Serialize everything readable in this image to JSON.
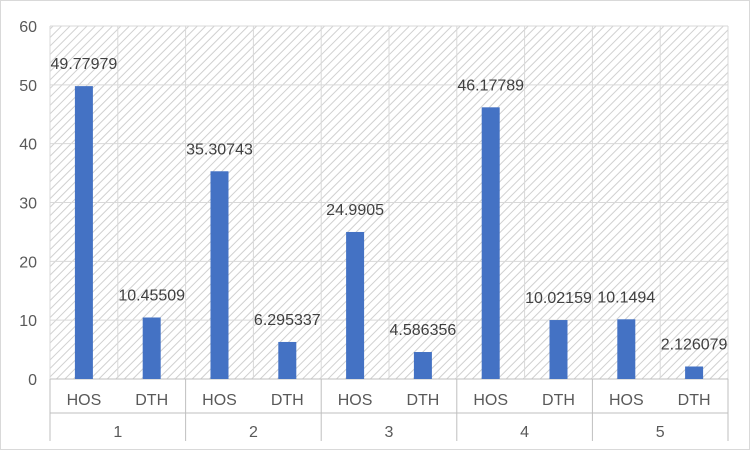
{
  "colors": {
    "bar": "#4472c4",
    "grid": "#d9d9d9",
    "axis": "#bfbfbf",
    "hatch": "#d0d0d0",
    "text": "#595959"
  },
  "chart_data": {
    "type": "bar",
    "title": "",
    "xlabel": "",
    "ylabel": "",
    "ylim": [
      0,
      60
    ],
    "yticks": [
      0,
      10,
      20,
      30,
      40,
      50,
      60
    ],
    "grid": true,
    "legend": "none",
    "groups": [
      {
        "label": "1",
        "bars": [
          {
            "category": "HOS",
            "value": 49.77979,
            "label": "49.77979"
          },
          {
            "category": "DTH",
            "value": 10.45509,
            "label": "10.45509"
          }
        ]
      },
      {
        "label": "2",
        "bars": [
          {
            "category": "HOS",
            "value": 35.30743,
            "label": "35.30743"
          },
          {
            "category": "DTH",
            "value": 6.295337,
            "label": "6.295337"
          }
        ]
      },
      {
        "label": "3",
        "bars": [
          {
            "category": "HOS",
            "value": 24.9905,
            "label": "24.9905"
          },
          {
            "category": "DTH",
            "value": 4.586356,
            "label": "4.586356"
          }
        ]
      },
      {
        "label": "4",
        "bars": [
          {
            "category": "HOS",
            "value": 46.17789,
            "label": "46.17789"
          },
          {
            "category": "DTH",
            "value": 10.02159,
            "label": "10.02159"
          }
        ]
      },
      {
        "label": "5",
        "bars": [
          {
            "category": "HOS",
            "value": 10.1494,
            "label": "10.1494"
          },
          {
            "category": "DTH",
            "value": 2.126079,
            "label": "2.126079"
          }
        ]
      }
    ]
  }
}
